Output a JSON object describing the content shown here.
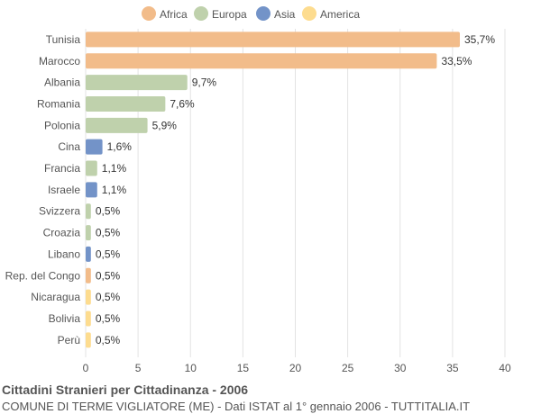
{
  "chart_data": {
    "type": "bar",
    "orientation": "horizontal",
    "title": "Cittadini Stranieri per Cittadinanza - 2006",
    "subtitle": "COMUNE DI TERME VIGLIATORE (ME) - Dati ISTAT al 1° gennaio 2006 - TUTTITALIA.IT",
    "xlabel": "",
    "ylabel": "",
    "xlim": [
      0,
      40
    ],
    "xticks": [
      "0",
      "5",
      "10",
      "15",
      "20",
      "25",
      "30",
      "35",
      "40"
    ],
    "grid": true,
    "legend_position": "top-center",
    "legend": [
      {
        "name": "Africa",
        "color": "#f2bc8a"
      },
      {
        "name": "Europa",
        "color": "#bfd1ac"
      },
      {
        "name": "Asia",
        "color": "#7393c8"
      },
      {
        "name": "America",
        "color": "#fddc8f"
      }
    ],
    "categories": [
      "Tunisia",
      "Marocco",
      "Albania",
      "Romania",
      "Polonia",
      "Cina",
      "Francia",
      "Israele",
      "Svizzera",
      "Croazia",
      "Libano",
      "Rep. del Congo",
      "Nicaragua",
      "Bolivia",
      "Perù"
    ],
    "values": [
      35.7,
      33.5,
      9.7,
      7.6,
      5.9,
      1.6,
      1.1,
      1.1,
      0.5,
      0.5,
      0.5,
      0.5,
      0.5,
      0.5,
      0.5
    ],
    "value_labels": [
      "35,7%",
      "33,5%",
      "9,7%",
      "7,6%",
      "5,9%",
      "1,6%",
      "1,1%",
      "1,1%",
      "0,5%",
      "0,5%",
      "0,5%",
      "0,5%",
      "0,5%",
      "0,5%",
      "0,5%"
    ],
    "groups": [
      "Africa",
      "Africa",
      "Europa",
      "Europa",
      "Europa",
      "Asia",
      "Europa",
      "Asia",
      "Europa",
      "Europa",
      "Asia",
      "Africa",
      "America",
      "America",
      "America"
    ]
  }
}
